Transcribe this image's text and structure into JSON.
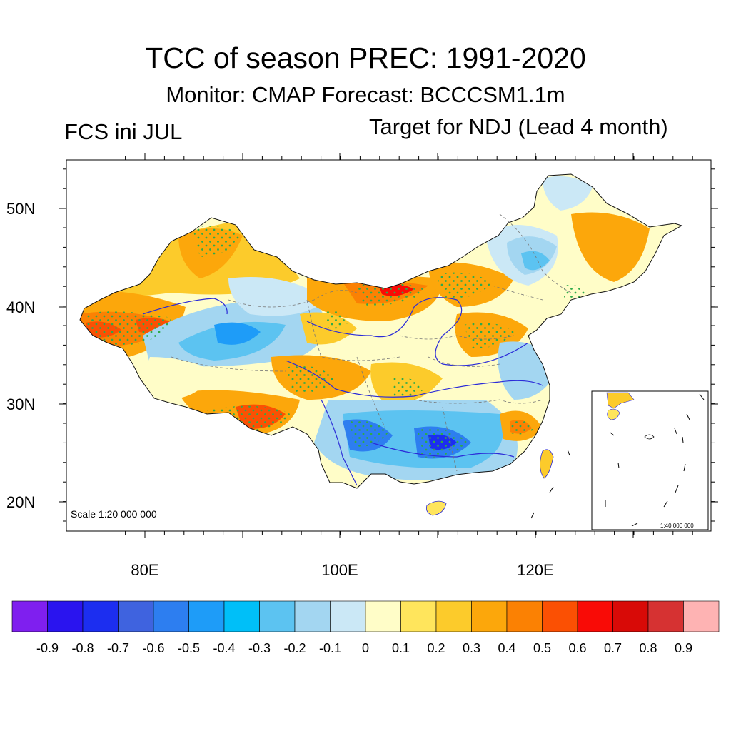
{
  "figure": {
    "title": "TCC of season PREC: 1991-2020",
    "subtitle": "Monitor: CMAP   Forecast: BCCCSM1.1m",
    "left_label": "FCS ini JUL",
    "right_label": "Target for NDJ (Lead 4 month)",
    "scale_main": "Scale 1:20 000 000",
    "scale_inset": "1:40 000 000"
  },
  "axes": {
    "lat_labels": [
      "50N",
      "40N",
      "30N",
      "20N"
    ],
    "lon_labels": [
      "80E",
      "100E",
      "120E"
    ]
  },
  "colorbar": {
    "colors": [
      "#7f1fef",
      "#2a14ef",
      "#1c2ef0",
      "#3f63df",
      "#2d7ef0",
      "#1e9cf8",
      "#00bff8",
      "#5cc3f1",
      "#a3d6f1",
      "#cbe8f6",
      "#fffdc8",
      "#ffe55c",
      "#fccb2b",
      "#fca70b",
      "#fb8103",
      "#fb5003",
      "#f90b06",
      "#d80a07",
      "#d63232",
      "#feb3b3"
    ],
    "labels": [
      "-0.9",
      "-0.8",
      "-0.7",
      "-0.6",
      "-0.5",
      "-0.4",
      "-0.3",
      "-0.2",
      "-0.1",
      "0",
      "0.1",
      "0.2",
      "0.3",
      "0.4",
      "0.5",
      "0.6",
      "0.7",
      "0.8",
      "0.9"
    ]
  }
}
